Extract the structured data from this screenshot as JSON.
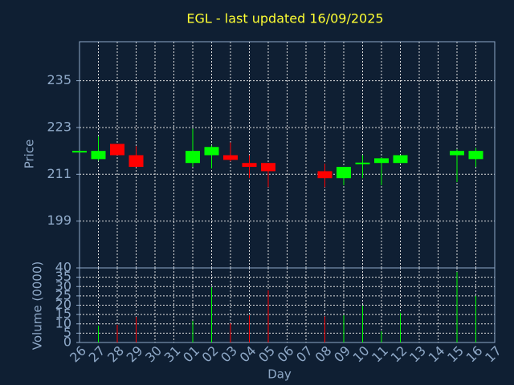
{
  "chart_data": {
    "type": "candlestick",
    "title": "EGL - last updated 16/09/2025",
    "ylabel": "Price",
    "vol_ylabel": "Volume (0000)",
    "xlabel": "Day",
    "categories": [
      "26",
      "27",
      "28",
      "29",
      "30",
      "31",
      "01",
      "02",
      "03",
      "04",
      "05",
      "06",
      "07",
      "08",
      "09",
      "10",
      "11",
      "12",
      "13",
      "14",
      "15",
      "16",
      "17"
    ],
    "open": [
      217.0,
      214.9,
      218.8,
      215.9,
      null,
      null,
      213.9,
      215.9,
      215.9,
      213.9,
      213.9,
      null,
      null,
      211.8,
      210.0,
      213.8,
      213.9,
      213.9,
      null,
      null,
      215.9,
      214.9,
      null
    ],
    "high": [
      217.0,
      220.7,
      218.8,
      218.2,
      null,
      null,
      222.7,
      218.4,
      219.2,
      215.9,
      213.9,
      null,
      null,
      213.7,
      212.9,
      215.9,
      215.3,
      215.9,
      null,
      null,
      217.4,
      217.8,
      null
    ],
    "low": [
      217.0,
      214.5,
      215.9,
      212.9,
      null,
      null,
      212.9,
      212.5,
      214.3,
      210.0,
      207.7,
      null,
      null,
      207.7,
      208.2,
      210.0,
      208.2,
      213.9,
      null,
      null,
      209.0,
      212.9,
      null
    ],
    "close": [
      217.0,
      217.0,
      215.9,
      212.9,
      null,
      null,
      217.0,
      218.0,
      214.7,
      212.9,
      211.8,
      null,
      null,
      210.0,
      212.9,
      214.0,
      215.1,
      215.9,
      null,
      null,
      217.0,
      217.0,
      null
    ],
    "volume": [
      0,
      9,
      9.5,
      13.7,
      null,
      null,
      11.6,
      29.6,
      10.3,
      14.6,
      28,
      null,
      null,
      14,
      14.6,
      19.7,
      6,
      15.9,
      null,
      null,
      37.8,
      25,
      null
    ],
    "ylim": [
      187,
      245
    ],
    "yticks": [
      199,
      211,
      223,
      235
    ],
    "vol_ylim": [
      0,
      40
    ],
    "vol_yticks": [
      0,
      5,
      10,
      15,
      20,
      25,
      30,
      35,
      40
    ],
    "up_color": "#00ff00",
    "down_color": "#ff0000",
    "grid": true
  }
}
